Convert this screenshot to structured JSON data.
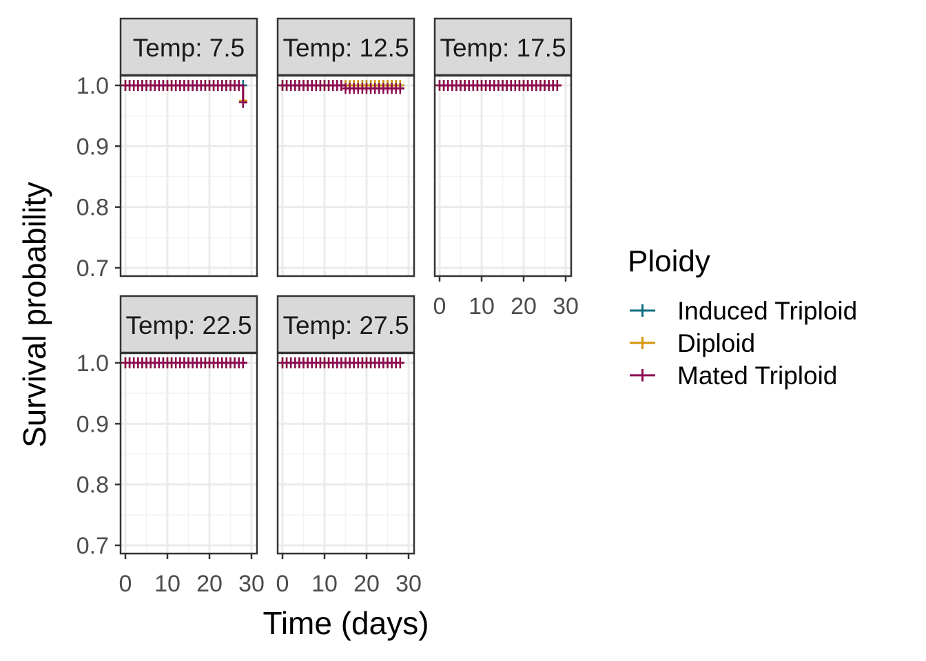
{
  "chart_data": {
    "type": "line",
    "subtype": "kaplan-meier survival curves (faceted)",
    "xlabel": "Time (days)",
    "ylabel": "Survival probability",
    "xlim": [
      -1,
      31
    ],
    "ylim": [
      0.69,
      1.0
    ],
    "xticks": [
      0,
      10,
      20,
      30
    ],
    "xtick_labels": [
      "0",
      "10",
      "20",
      "30"
    ],
    "yticks": [
      0.7,
      0.8,
      0.9,
      1.0
    ],
    "ytick_labels": [
      "0.7",
      "0.8",
      "0.9",
      "1.0"
    ],
    "grid": true,
    "censor_marker": "+",
    "legend": {
      "title": "Ploidy",
      "position": "right",
      "entries": [
        "Induced Triploid",
        "Diploid",
        "Mated Triploid"
      ]
    },
    "series_colors": {
      "Induced Triploid": "#0f6e80",
      "Diploid": "#d4960a",
      "Mated Triploid": "#8b0a50"
    },
    "panels": [
      {
        "strip": "Temp: 7.5",
        "series": [
          {
            "name": "Induced Triploid",
            "x": [
              0,
              28.5
            ],
            "y": [
              1.0,
              1.0
            ],
            "censor_x": [
              0,
              1,
              2,
              3,
              4,
              5,
              6,
              7,
              8,
              9,
              10,
              11,
              12,
              13,
              14,
              15,
              16,
              17,
              18,
              19,
              20,
              21,
              22,
              23,
              24,
              25,
              26,
              27,
              28
            ]
          },
          {
            "name": "Diploid",
            "x": [
              0,
              28,
              28,
              29
            ],
            "y": [
              1.0,
              1.0,
              0.975,
              0.975
            ],
            "censor_x": [
              0,
              1,
              2,
              3,
              4,
              5,
              6,
              7,
              8,
              9,
              10,
              11,
              12,
              13,
              14,
              15,
              16,
              17,
              18,
              19,
              20,
              21,
              22,
              23,
              24,
              25,
              26,
              27,
              28
            ]
          },
          {
            "name": "Mated Triploid",
            "x": [
              0,
              28,
              28,
              29
            ],
            "y": [
              1.0,
              1.0,
              0.972,
              0.972
            ],
            "censor_x": [
              0,
              1,
              2,
              3,
              4,
              5,
              6,
              7,
              8,
              9,
              10,
              11,
              12,
              13,
              14,
              15,
              16,
              17,
              18,
              19,
              20,
              21,
              22,
              23,
              24,
              25,
              26,
              27,
              28
            ]
          }
        ]
      },
      {
        "strip": "Temp: 12.5",
        "series": [
          {
            "name": "Induced Triploid",
            "x": [
              0,
              28
            ],
            "y": [
              1.0,
              1.0
            ],
            "censor_x": [
              0,
              1,
              2,
              3,
              4,
              5,
              6,
              7,
              8,
              9,
              10,
              11,
              12,
              13,
              14,
              15,
              16,
              17,
              18,
              19,
              20,
              21,
              22,
              23,
              24,
              25,
              26,
              27,
              28
            ]
          },
          {
            "name": "Diploid",
            "x": [
              0,
              28
            ],
            "y": [
              1.0,
              1.0
            ],
            "censor_x": [
              0,
              1,
              2,
              3,
              4,
              5,
              6,
              7,
              8,
              9,
              10,
              11,
              12,
              13,
              14,
              15,
              16,
              17,
              18,
              19,
              20,
              21,
              22,
              23,
              24,
              25,
              26,
              27,
              28
            ]
          },
          {
            "name": "Mated Triploid",
            "x": [
              0,
              15,
              15,
              29
            ],
            "y": [
              1.0,
              1.0,
              0.995,
              0.995
            ],
            "censor_x": [
              0,
              1,
              2,
              3,
              4,
              5,
              6,
              7,
              8,
              9,
              10,
              11,
              12,
              13,
              14,
              15,
              16,
              17,
              18,
              19,
              20,
              21,
              22,
              23,
              24,
              25,
              26,
              27,
              28
            ]
          }
        ]
      },
      {
        "strip": "Temp: 17.5",
        "series": [
          {
            "name": "Induced Triploid",
            "x": [
              0,
              29
            ],
            "y": [
              1.0,
              1.0
            ],
            "censor_x": [
              0,
              1,
              2,
              3,
              4,
              5,
              6,
              7,
              8,
              9,
              10,
              11,
              12,
              13,
              14,
              15,
              16,
              17,
              18,
              19,
              20,
              21,
              22,
              23,
              24,
              25,
              26,
              27,
              28
            ]
          },
          {
            "name": "Diploid",
            "x": [
              0,
              29
            ],
            "y": [
              1.0,
              1.0
            ],
            "censor_x": [
              0,
              1,
              2,
              3,
              4,
              5,
              6,
              7,
              8,
              9,
              10,
              11,
              12,
              13,
              14,
              15,
              16,
              17,
              18,
              19,
              20,
              21,
              22,
              23,
              24,
              25,
              26,
              27,
              28
            ]
          },
          {
            "name": "Mated Triploid",
            "x": [
              0,
              29
            ],
            "y": [
              1.0,
              1.0
            ],
            "censor_x": [
              0,
              1,
              2,
              3,
              4,
              5,
              6,
              7,
              8,
              9,
              10,
              11,
              12,
              13,
              14,
              15,
              16,
              17,
              18,
              19,
              20,
              21,
              22,
              23,
              24,
              25,
              26,
              27,
              28
            ]
          }
        ]
      },
      {
        "strip": "Temp: 22.5",
        "series": [
          {
            "name": "Induced Triploid",
            "x": [
              0,
              29
            ],
            "y": [
              1.0,
              1.0
            ],
            "censor_x": [
              0,
              1,
              2,
              3,
              4,
              5,
              6,
              7,
              8,
              9,
              10,
              11,
              12,
              13,
              14,
              15,
              16,
              17,
              18,
              19,
              20,
              21,
              22,
              23,
              24,
              25,
              26,
              27,
              28
            ]
          },
          {
            "name": "Diploid",
            "x": [
              0,
              29
            ],
            "y": [
              1.0,
              1.0
            ],
            "censor_x": [
              0,
              1,
              2,
              3,
              4,
              5,
              6,
              7,
              8,
              9,
              10,
              11,
              12,
              13,
              14,
              15,
              16,
              17,
              18,
              19,
              20,
              21,
              22,
              23,
              24,
              25,
              26,
              27,
              28
            ]
          },
          {
            "name": "Mated Triploid",
            "x": [
              0,
              29
            ],
            "y": [
              1.0,
              1.0
            ],
            "censor_x": [
              0,
              1,
              2,
              3,
              4,
              5,
              6,
              7,
              8,
              9,
              10,
              11,
              12,
              13,
              14,
              15,
              16,
              17,
              18,
              19,
              20,
              21,
              22,
              23,
              24,
              25,
              26,
              27,
              28
            ]
          }
        ]
      },
      {
        "strip": "Temp: 27.5",
        "series": [
          {
            "name": "Induced Triploid",
            "x": [
              0,
              29
            ],
            "y": [
              1.0,
              1.0
            ],
            "censor_x": [
              0,
              1,
              2,
              3,
              4,
              5,
              6,
              7,
              8,
              9,
              10,
              11,
              12,
              13,
              14,
              15,
              16,
              17,
              18,
              19,
              20,
              21,
              22,
              23,
              24,
              25,
              26,
              27,
              28
            ]
          },
          {
            "name": "Diploid",
            "x": [
              0,
              29
            ],
            "y": [
              1.0,
              1.0
            ],
            "censor_x": [
              0,
              1,
              2,
              3,
              4,
              5,
              6,
              7,
              8,
              9,
              10,
              11,
              12,
              13,
              14,
              15,
              16,
              17,
              18,
              19,
              20,
              21,
              22,
              23,
              24,
              25,
              26,
              27,
              28
            ]
          },
          {
            "name": "Mated Triploid",
            "x": [
              0,
              29
            ],
            "y": [
              1.0,
              1.0
            ],
            "censor_x": [
              0,
              1,
              2,
              3,
              4,
              5,
              6,
              7,
              8,
              9,
              10,
              11,
              12,
              13,
              14,
              15,
              16,
              17,
              18,
              19,
              20,
              21,
              22,
              23,
              24,
              25,
              26,
              27,
              28
            ]
          }
        ]
      }
    ]
  }
}
